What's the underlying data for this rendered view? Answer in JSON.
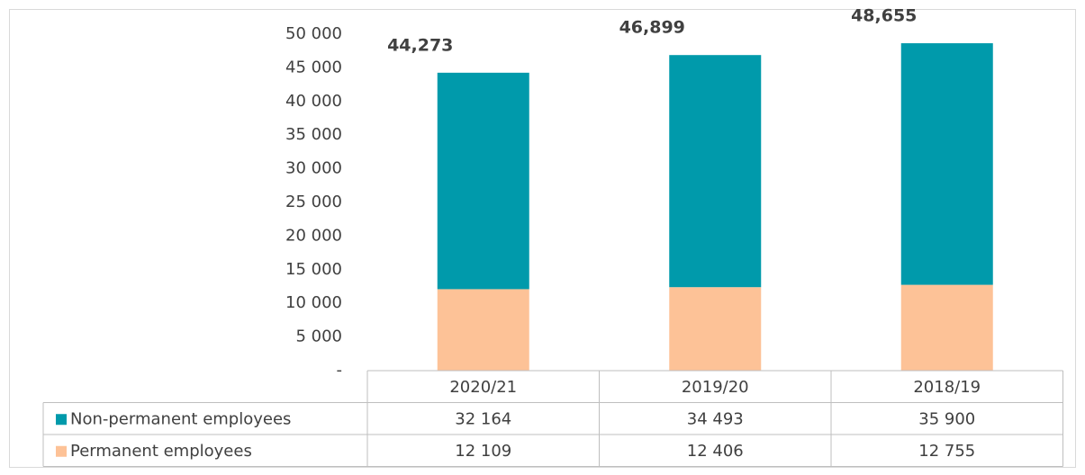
{
  "chart_data": {
    "type": "stacked-bar-table",
    "categories": [
      "2020/21",
      "2019/20",
      "2018/19"
    ],
    "series": [
      {
        "name": "Non-permanent employees",
        "color": "#009aab",
        "values": [
          32164,
          34493,
          35900
        ],
        "value_labels": [
          "32 164",
          "34 493",
          "35 900"
        ]
      },
      {
        "name": "Permanent employees",
        "color": "#fdc297",
        "values": [
          12109,
          12406,
          12755
        ],
        "value_labels": [
          "12 109",
          "12 406",
          "12 755"
        ]
      }
    ],
    "totals": {
      "values": [
        44273,
        46899,
        48655
      ],
      "value_labels": [
        "44,273",
        "46,899",
        "48,655"
      ]
    },
    "ylim": [
      0,
      50000
    ],
    "yticks": [
      {
        "value": 0,
        "label": "-"
      },
      {
        "value": 5000,
        "label": "5 000"
      },
      {
        "value": 10000,
        "label": "10 000"
      },
      {
        "value": 15000,
        "label": "15 000"
      },
      {
        "value": 20000,
        "label": "20 000"
      },
      {
        "value": 25000,
        "label": "25 000"
      },
      {
        "value": 30000,
        "label": "30 000"
      },
      {
        "value": 35000,
        "label": "35 000"
      },
      {
        "value": 40000,
        "label": "40 000"
      },
      {
        "value": 45000,
        "label": "45 000"
      },
      {
        "value": 50000,
        "label": "50 000"
      }
    ]
  }
}
